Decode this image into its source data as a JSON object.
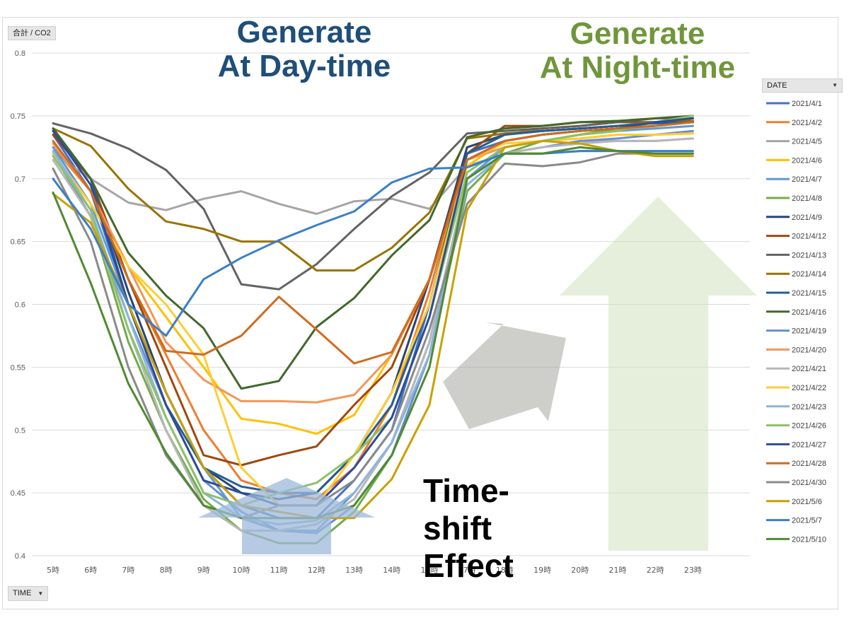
{
  "overlays": {
    "day_title_line1": "Generate",
    "day_title_line2": "At Day-time",
    "night_title_line1": "Generate",
    "night_title_line2": "At Night-time",
    "timeshift_line1": "Time-",
    "timeshift_line2": "shift",
    "timeshift_line3": "Effect",
    "day_color": "#1f4e79",
    "night_color": "#70963b"
  },
  "pivot": {
    "value_field": "合計 / CO2",
    "legend_field": "DATE",
    "axis_field": "TIME"
  },
  "chart_data": {
    "type": "line",
    "x": [
      "5時",
      "6時",
      "7時",
      "8時",
      "9時",
      "10時",
      "11時",
      "12時",
      "13時",
      "14時",
      "15時",
      "17時",
      "18時",
      "19時",
      "20時",
      "21時",
      "22時",
      "23時"
    ],
    "ylim": [
      0.4,
      0.8
    ],
    "yticks": [
      0.4,
      0.45,
      0.5,
      0.55,
      0.6,
      0.65,
      0.7,
      0.75,
      0.8
    ],
    "grid": true,
    "legend_position": "right",
    "series": [
      {
        "name": "2021/4/1",
        "color": "#4472c4",
        "values": [
          0.735,
          0.69,
          0.6,
          0.53,
          0.47,
          0.44,
          0.43,
          0.43,
          0.46,
          0.5,
          0.6,
          0.72,
          0.73,
          0.735,
          0.738,
          0.74,
          0.742,
          0.745
        ]
      },
      {
        "name": "2021/4/2",
        "color": "#ed7d31",
        "values": [
          0.725,
          0.69,
          0.62,
          0.56,
          0.5,
          0.46,
          0.45,
          0.445,
          0.47,
          0.52,
          0.61,
          0.72,
          0.735,
          0.74,
          0.742,
          0.745,
          0.745,
          0.745
        ]
      },
      {
        "name": "2021/4/5",
        "color": "#a5a5a5",
        "values": [
          0.72,
          0.7,
          0.681,
          0.675,
          0.684,
          0.69,
          0.68,
          0.672,
          0.682,
          0.684,
          0.676,
          0.71,
          0.72,
          0.725,
          0.73,
          0.73,
          0.73,
          0.732
        ]
      },
      {
        "name": "2021/4/6",
        "color": "#ffc000",
        "values": [
          0.73,
          0.69,
          0.63,
          0.59,
          0.55,
          0.509,
          0.505,
          0.497,
          0.512,
          0.56,
          0.62,
          0.71,
          0.73,
          0.735,
          0.738,
          0.74,
          0.74,
          0.742
        ]
      },
      {
        "name": "2021/4/7",
        "color": "#5b9bd5",
        "values": [
          0.725,
          0.68,
          0.6,
          0.53,
          0.47,
          0.43,
          0.42,
          0.42,
          0.45,
          0.49,
          0.57,
          0.7,
          0.725,
          0.73,
          0.735,
          0.738,
          0.74,
          0.742
        ]
      },
      {
        "name": "2021/4/8",
        "color": "#70ad47",
        "values": [
          0.72,
          0.67,
          0.57,
          0.5,
          0.445,
          0.42,
          0.41,
          0.41,
          0.435,
          0.48,
          0.56,
          0.69,
          0.72,
          0.73,
          0.735,
          0.74,
          0.745,
          0.748
        ]
      },
      {
        "name": "2021/4/9",
        "color": "#264478",
        "values": [
          0.74,
          0.7,
          0.61,
          0.53,
          0.47,
          0.45,
          0.445,
          0.45,
          0.48,
          0.53,
          0.62,
          0.725,
          0.735,
          0.738,
          0.74,
          0.742,
          0.745,
          0.745
        ]
      },
      {
        "name": "2021/4/12",
        "color": "#9e480e",
        "values": [
          0.735,
          0.7,
          0.62,
          0.55,
          0.48,
          0.472,
          0.48,
          0.487,
          0.52,
          0.55,
          0.62,
          0.72,
          0.742,
          0.742,
          0.745,
          0.745,
          0.748,
          0.748
        ]
      },
      {
        "name": "2021/4/13",
        "color": "#636363",
        "values": [
          0.744,
          0.736,
          0.724,
          0.707,
          0.676,
          0.616,
          0.612,
          0.632,
          0.66,
          0.686,
          0.705,
          0.736,
          0.738,
          0.74,
          0.742,
          0.745,
          0.745,
          0.746
        ]
      },
      {
        "name": "2021/4/14",
        "color": "#997300",
        "values": [
          0.74,
          0.726,
          0.692,
          0.666,
          0.66,
          0.65,
          0.65,
          0.627,
          0.627,
          0.645,
          0.673,
          0.732,
          0.736,
          0.738,
          0.74,
          0.742,
          0.745,
          0.746
        ]
      },
      {
        "name": "2021/4/15",
        "color": "#255e91",
        "values": [
          0.738,
          0.7,
          0.6,
          0.52,
          0.47,
          0.455,
          0.45,
          0.45,
          0.48,
          0.52,
          0.6,
          0.72,
          0.735,
          0.738,
          0.74,
          0.742,
          0.744,
          0.745
        ]
      },
      {
        "name": "2021/4/16",
        "color": "#43682b",
        "values": [
          0.74,
          0.7,
          0.641,
          0.607,
          0.581,
          0.533,
          0.539,
          0.582,
          0.605,
          0.639,
          0.667,
          0.733,
          0.74,
          0.742,
          0.745,
          0.746,
          0.748,
          0.75
        ]
      },
      {
        "name": "2021/4/19",
        "color": "#698ed0",
        "values": [
          0.72,
          0.67,
          0.59,
          0.52,
          0.46,
          0.435,
          0.42,
          0.418,
          0.44,
          0.48,
          0.56,
          0.7,
          0.72,
          0.725,
          0.73,
          0.732,
          0.735,
          0.738
        ]
      },
      {
        "name": "2021/4/20",
        "color": "#f1975a",
        "values": [
          0.728,
          0.69,
          0.63,
          0.57,
          0.54,
          0.523,
          0.523,
          0.522,
          0.528,
          0.56,
          0.62,
          0.715,
          0.725,
          0.73,
          0.732,
          0.735,
          0.735,
          0.736
        ]
      },
      {
        "name": "2021/4/21",
        "color": "#b7b7b7",
        "values": [
          0.715,
          0.67,
          0.58,
          0.5,
          0.44,
          0.42,
          0.42,
          0.425,
          0.445,
          0.49,
          0.57,
          0.7,
          0.72,
          0.725,
          0.728,
          0.73,
          0.73,
          0.732
        ]
      },
      {
        "name": "2021/4/22",
        "color": "#ffcd33",
        "values": [
          0.72,
          0.68,
          0.63,
          0.6,
          0.56,
          0.47,
          0.44,
          0.44,
          0.48,
          0.53,
          0.6,
          0.715,
          0.728,
          0.73,
          0.732,
          0.735,
          0.735,
          0.736
        ]
      },
      {
        "name": "2021/4/23",
        "color": "#8cb4dd",
        "values": [
          0.722,
          0.675,
          0.59,
          0.51,
          0.45,
          0.43,
          0.425,
          0.428,
          0.45,
          0.49,
          0.56,
          0.695,
          0.72,
          0.72,
          0.722,
          0.722,
          0.72,
          0.72
        ]
      },
      {
        "name": "2021/4/26",
        "color": "#8cc168",
        "values": [
          0.718,
          0.675,
          0.58,
          0.51,
          0.45,
          0.44,
          0.45,
          0.458,
          0.48,
          0.51,
          0.59,
          0.705,
          0.725,
          0.73,
          0.735,
          0.738,
          0.745,
          0.75
        ]
      },
      {
        "name": "2021/4/27",
        "color": "#2f4b99",
        "values": [
          0.738,
          0.695,
          0.6,
          0.52,
          0.46,
          0.45,
          0.44,
          0.44,
          0.47,
          0.51,
          0.59,
          0.715,
          0.73,
          0.735,
          0.738,
          0.74,
          0.745,
          0.748
        ]
      },
      {
        "name": "2021/4/28",
        "color": "#d16b1e",
        "values": [
          0.73,
          0.69,
          0.62,
          0.563,
          0.56,
          0.575,
          0.606,
          0.58,
          0.553,
          0.562,
          0.62,
          0.715,
          0.73,
          0.735,
          0.738,
          0.74,
          0.742,
          0.745
        ]
      },
      {
        "name": "2021/4/30",
        "color": "#8a8a8a",
        "values": [
          0.708,
          0.65,
          0.55,
          0.48,
          0.44,
          0.43,
          0.44,
          0.44,
          0.46,
          0.5,
          0.58,
          0.68,
          0.712,
          0.71,
          0.713,
          0.72,
          0.72,
          0.72
        ]
      },
      {
        "name": "2021/5/6",
        "color": "#c9a000",
        "values": [
          0.688,
          0.665,
          0.6,
          0.53,
          0.47,
          0.44,
          0.435,
          0.43,
          0.43,
          0.461,
          0.52,
          0.675,
          0.725,
          0.73,
          0.728,
          0.722,
          0.718,
          0.718
        ]
      },
      {
        "name": "2021/5/7",
        "color": "#3a7fc9",
        "values": [
          0.7,
          0.66,
          0.6,
          0.575,
          0.62,
          0.637,
          0.651,
          0.663,
          0.674,
          0.697,
          0.708,
          0.709,
          0.72,
          0.72,
          0.722,
          0.722,
          0.722,
          0.722
        ]
      },
      {
        "name": "2021/5/10",
        "color": "#4f8a32",
        "values": [
          0.689,
          0.617,
          0.537,
          0.482,
          0.44,
          0.43,
          0.43,
          0.43,
          0.44,
          0.48,
          0.55,
          0.7,
          0.72,
          0.72,
          0.725,
          0.722,
          0.72,
          0.72
        ]
      }
    ]
  }
}
